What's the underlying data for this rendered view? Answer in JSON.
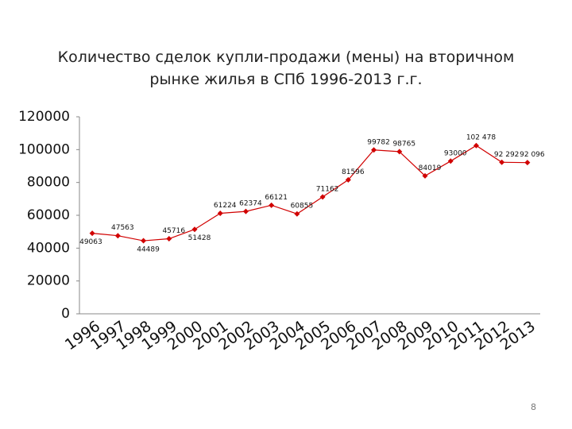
{
  "chart_data": {
    "type": "line",
    "title": "Количество сделок купли-продажи (мены) на вторичном рынке жилья в СПб 1996-2013 г.г.",
    "categories": [
      "1996",
      "1997",
      "1998",
      "1999",
      "2000",
      "2001",
      "2002",
      "2003",
      "2004",
      "2005",
      "2006",
      "2007",
      "2008",
      "2009",
      "2010",
      "2011",
      "2012",
      "2013"
    ],
    "series": [
      {
        "color": "#d10000",
        "values": [
          49063,
          47563,
          44489,
          45716,
          51428,
          61224,
          62374,
          66121,
          60855,
          71162,
          81596,
          99782,
          98765,
          84019,
          93000,
          102478,
          92292,
          92096
        ],
        "value_labels": [
          "49063",
          "47563",
          "44489",
          "45716",
          "51428",
          "61224",
          "62374",
          "66121",
          "60855",
          "71162",
          "81596",
          "99782",
          "98765",
          "84019",
          "93000",
          "102 478",
          "92 292",
          "92 096"
        ]
      }
    ],
    "ylim": [
      0,
      120000
    ],
    "yticks": [
      0,
      20000,
      40000,
      60000,
      80000,
      100000,
      120000
    ],
    "grid": false
  },
  "page_number": "8"
}
